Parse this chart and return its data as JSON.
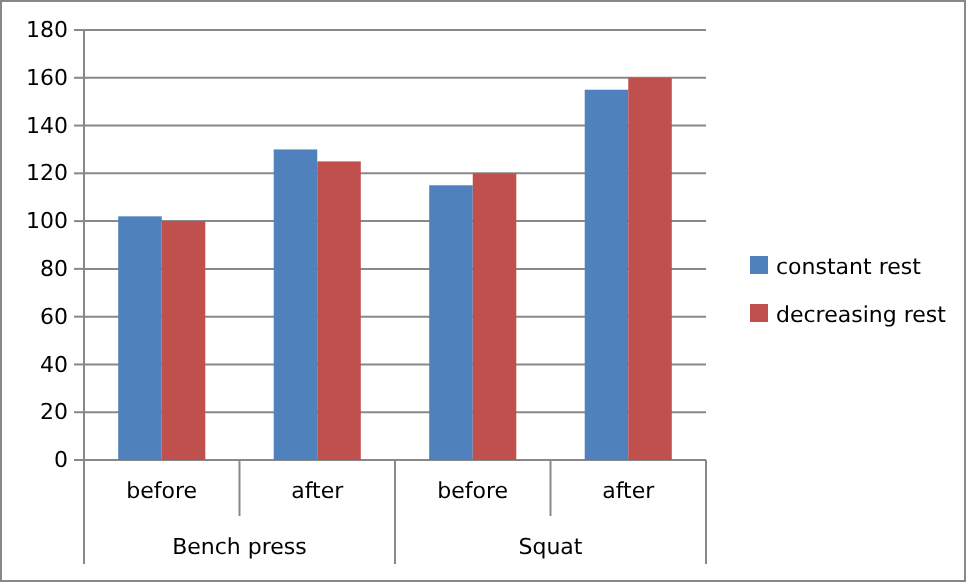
{
  "chart_data": {
    "type": "bar",
    "categories": [
      "before",
      "after",
      "before",
      "after"
    ],
    "series": [
      {
        "name": "constant rest",
        "color": "#4f81bd",
        "values": [
          102,
          130,
          115,
          155
        ]
      },
      {
        "name": "decreasing rest",
        "color": "#c0504d",
        "values": [
          100,
          125,
          120,
          160
        ]
      }
    ],
    "annotations": [
      "Bench press",
      "Squat"
    ],
    "ylim": [
      0,
      180
    ],
    "yticks": [
      0,
      20,
      40,
      60,
      80,
      100,
      120,
      140,
      160,
      180
    ],
    "grid": "y",
    "legend": "right"
  }
}
